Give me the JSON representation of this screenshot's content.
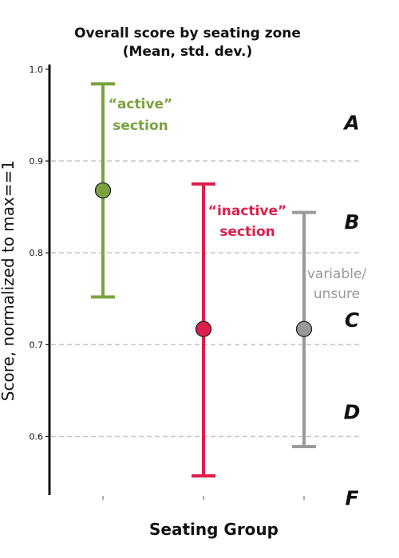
{
  "chart_data": {
    "type": "scatter",
    "title_lines": [
      "Overall score by seating zone",
      "(Mean, std. dev.)"
    ],
    "ylabel": "Score, normalized to max==1",
    "xlabel": "Seating Group",
    "ylim": [
      0.55,
      1.0
    ],
    "yticks": [
      "0.6",
      "0.7",
      "0.8",
      "0.9",
      "1.0"
    ],
    "ytick_values": [
      0.6,
      0.7,
      0.8,
      0.9,
      1.0
    ],
    "grid_lines": [
      0.6,
      0.7,
      0.8,
      0.9
    ],
    "series": [
      {
        "mean": 0.868,
        "low": 0.752,
        "high": 0.984,
        "color": "#7ba23f",
        "label_lines": [
          "“active”",
          "section"
        ]
      },
      {
        "mean": 0.717,
        "low": 0.557,
        "high": 0.875,
        "color": "#dc1f4b",
        "label_lines": [
          "“inactive”",
          "section"
        ]
      },
      {
        "mean": 0.717,
        "low": 0.589,
        "high": 0.844,
        "color": "#999999",
        "label_lines": [
          "variable/",
          "unsure"
        ]
      }
    ],
    "grade_bands": [
      {
        "letter": "A",
        "y": 0.942
      },
      {
        "letter": "B",
        "y": 0.834
      },
      {
        "letter": "C",
        "y": 0.727
      },
      {
        "letter": "D",
        "y": 0.627
      },
      {
        "letter": "F",
        "y": 0.533
      }
    ]
  }
}
